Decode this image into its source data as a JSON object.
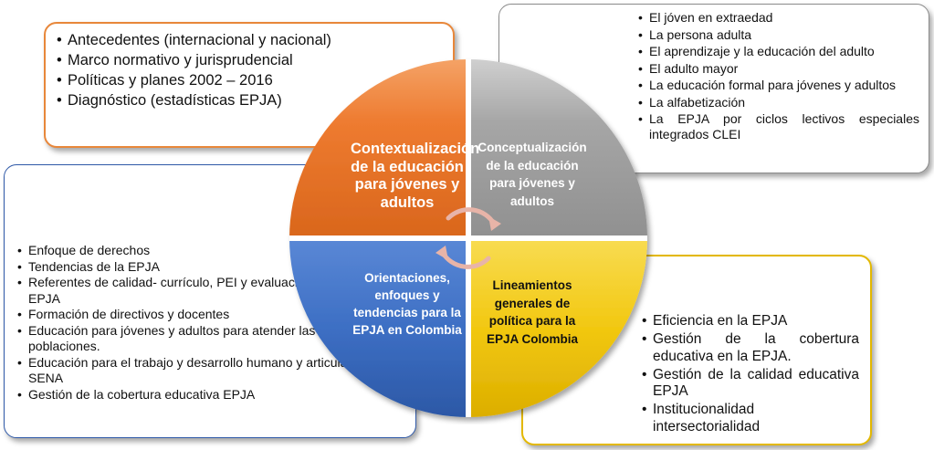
{
  "quadrants": {
    "top_left": "Contextualización de la educación para jóvenes y adultos",
    "top_right": "Conceptualización de la educación para jóvenes y adultos",
    "bottom_left": "Orientaciones, enfoques y tendencias para la EPJA en Colombia",
    "bottom_right": "Lineamientos generales de política para la EPJA Colombia"
  },
  "lists": {
    "top_left": [
      "Antecedentes (internacional y nacional)",
      "Marco normativo y jurisprudencial",
      "Políticas y planes 2002 – 2016",
      "Diagnóstico (estadísticas EPJA)"
    ],
    "top_right": [
      "El jóven en extraedad",
      "La persona adulta",
      "El aprendizaje y la educación del adulto",
      "El adulto mayor",
      "La educación formal para jóvenes y adultos",
      "La alfabetización",
      "La EPJA por ciclos lectivos especiales integrados CLEI"
    ],
    "left": [
      "Enfoque de derechos",
      "Tendencias de la EPJA",
      "Referentes de calidad- currículo, PEI y evaluación y MEF para la EPJA",
      "Formación de directivos y docentes",
      "Educación para jóvenes y adultos para atender las diferentes poblaciones.",
      "Educación para el trabajo y desarrollo humano y articulación con SENA",
      "Gestión de la cobertura educativa EPJA"
    ],
    "bottom_right": [
      "Eficiencia en la EPJA",
      "Gestión de la cobertura educativa en la EPJA.",
      "Gestión de la calidad educativa EPJA",
      "Institucionalidad intersectorialidad"
    ]
  },
  "colors": {
    "orange": "#ee7b30",
    "gray": "#a6a6a6",
    "blue": "#3d6fc4",
    "yellow": "#f2c811"
  }
}
